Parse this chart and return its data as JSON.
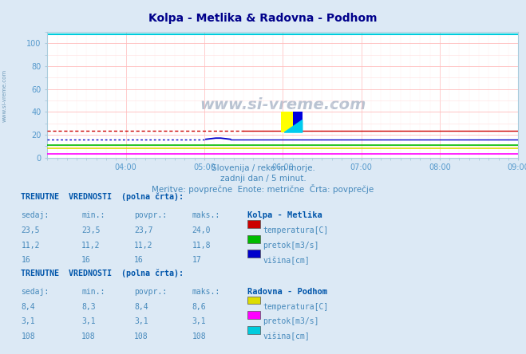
{
  "title": "Kolpa - Metlika & Radovna - Podhom",
  "title_color": "#00008B",
  "bg_color": "#dce9f5",
  "plot_bg_color": "#ffffff",
  "xlabel_color": "#5599cc",
  "ylabel_ticks": [
    0,
    20,
    40,
    60,
    80,
    100
  ],
  "ylim": [
    0,
    110
  ],
  "xlim": [
    0,
    288
  ],
  "xtick_labels": [
    "04:00",
    "05:00",
    "06:00",
    "07:00",
    "08:00",
    "09:00"
  ],
  "xtick_positions": [
    48,
    96,
    144,
    192,
    240,
    288
  ],
  "subtitle1": "Slovenija / reke in morje.",
  "subtitle2": "zadnji dan / 5 minut.",
  "subtitle3": "Meritve: povprečne  Enote: metrične  Črta: povprečje",
  "watermark": "www.si-vreme.com",
  "kolpa_temp_value": 23.5,
  "kolpa_temp_color": "#cc0000",
  "kolpa_pretok_value": 11.2,
  "kolpa_pretok_color": "#00bb00",
  "kolpa_visina_value": 16,
  "kolpa_visina_color": "#0000cc",
  "radovna_temp_value": 8.4,
  "radovna_temp_color": "#dddd00",
  "radovna_pretok_value": 3.1,
  "radovna_pretok_color": "#ff00ff",
  "radovna_visina_value": 108,
  "radovna_visina_color": "#00ccdd",
  "table1_header": "TRENUTNE  VREDNOSTI  (polna črta):",
  "table1_station": "Kolpa - Metlika",
  "table1_rows": [
    [
      "23,5",
      "23,5",
      "23,7",
      "24,0"
    ],
    [
      "11,2",
      "11,2",
      "11,2",
      "11,8"
    ],
    [
      "16",
      "16",
      "16",
      "17"
    ]
  ],
  "table1_labels": [
    "temperatura[C]",
    "pretok[m3/s]",
    "višina[cm]"
  ],
  "table1_colors": [
    "#cc0000",
    "#00bb00",
    "#0000cc"
  ],
  "table2_header": "TRENUTNE  VREDNOSTI  (polna črta):",
  "table2_station": "Radovna - Podhom",
  "table2_rows": [
    [
      "8,4",
      "8,3",
      "8,4",
      "8,6"
    ],
    [
      "3,1",
      "3,1",
      "3,1",
      "3,1"
    ],
    [
      "108",
      "108",
      "108",
      "108"
    ]
  ],
  "table2_labels": [
    "temperatura[C]",
    "pretok[m3/s]",
    "višina[cm]"
  ],
  "table2_colors": [
    "#dddd00",
    "#ff00ff",
    "#00ccdd"
  ]
}
